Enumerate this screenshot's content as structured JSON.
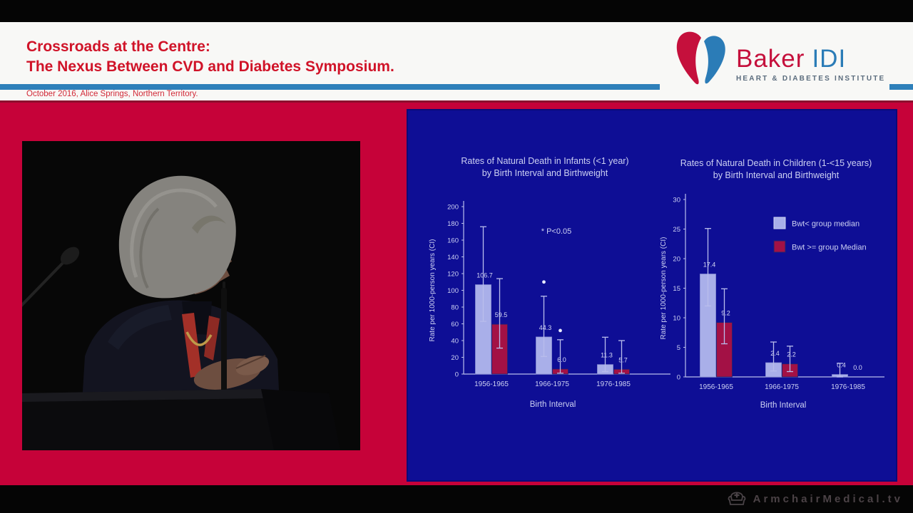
{
  "header": {
    "title_line1": "Crossroads at the Centre:",
    "title_line2": "The Nexus Between CVD and Diabetes Symposium.",
    "date_location": "October 2016, Alice Springs, Northern Territory.",
    "logo": {
      "brand_primary": "Baker",
      "brand_secondary": "IDI",
      "tagline": "HEART & DIABETES INSTITUTE"
    },
    "colors": {
      "title_red": "#d01328",
      "stripe_blue": "#2e80ba"
    }
  },
  "footer": {
    "brand": "ArmchairMedical.tv"
  },
  "slide": {
    "colors": {
      "background": "#0e0e95",
      "bar_light": "#a9afe9",
      "bar_dark": "#a31145",
      "text": "#ccd0f2",
      "axis": "#b9bdec",
      "value": "#d6d9f5",
      "marker": "#e9ebff"
    }
  },
  "chart_data": [
    {
      "type": "bar",
      "title_line1": "Rates of Natural Death in Infants (<1 year)",
      "title_line2": "by Birth Interval and Birthweight",
      "categories": [
        "1956-1965",
        "1966-1975",
        "1976-1985"
      ],
      "series": [
        {
          "name": "Bwt< group median",
          "color_key": "bar_light",
          "values": [
            106.7,
            44.3,
            11.3
          ],
          "ci": [
            [
              63,
              176
            ],
            [
              21,
              93
            ],
            [
              3,
              44
            ]
          ]
        },
        {
          "name": "Bwt >= group Median",
          "color_key": "bar_dark",
          "values": [
            59.5,
            6.0,
            5.7
          ],
          "ci": [
            [
              31,
              114
            ],
            [
              1,
              41
            ],
            [
              1,
              40
            ]
          ]
        }
      ],
      "value_labels": [
        [
          "106.7",
          "59.5"
        ],
        [
          "44.3",
          "6.0"
        ],
        [
          "11.3",
          "5.7"
        ]
      ],
      "xlabel": "Birth Interval",
      "ylabel": "Rate per 1000-person years (CI)",
      "ylim": [
        0,
        200
      ],
      "ytick_step": 20,
      "grid": false,
      "annotation": "* P<0.05",
      "sig_markers": [
        {
          "group": 1,
          "series": 0,
          "y": 110
        },
        {
          "group": 1,
          "series": 1,
          "y": 52
        }
      ],
      "legend": false
    },
    {
      "type": "bar",
      "title_line1": "Rates of Natural Death in Children (1-<15 years)",
      "title_line2": "by Birth Interval and Birthweight",
      "categories": [
        "1956-1965",
        "1966-1975",
        "1976-1985"
      ],
      "series": [
        {
          "name": "Bwt< group median",
          "color_key": "bar_light",
          "values": [
            17.4,
            2.4,
            0.4
          ],
          "ci": [
            [
              12,
              25.1
            ],
            [
              1,
              5.9
            ],
            [
              0,
              2.3
            ]
          ]
        },
        {
          "name": "Bwt >= group Median",
          "color_key": "bar_dark",
          "values": [
            9.2,
            2.2,
            0.0
          ],
          "ci": [
            [
              5.6,
              14.9
            ],
            [
              0.9,
              5.2
            ],
            null
          ]
        }
      ],
      "value_labels": [
        [
          "17.4",
          "9.2"
        ],
        [
          "2.4",
          "2.2"
        ],
        [
          "0.4",
          "0.0"
        ]
      ],
      "xlabel": "Birth Interval",
      "ylabel": "Rate per 1000-person years  (CI)",
      "ylim": [
        0,
        30
      ],
      "ytick_step": 5,
      "grid": false,
      "legend": true,
      "legend_position": "upper-right"
    }
  ]
}
